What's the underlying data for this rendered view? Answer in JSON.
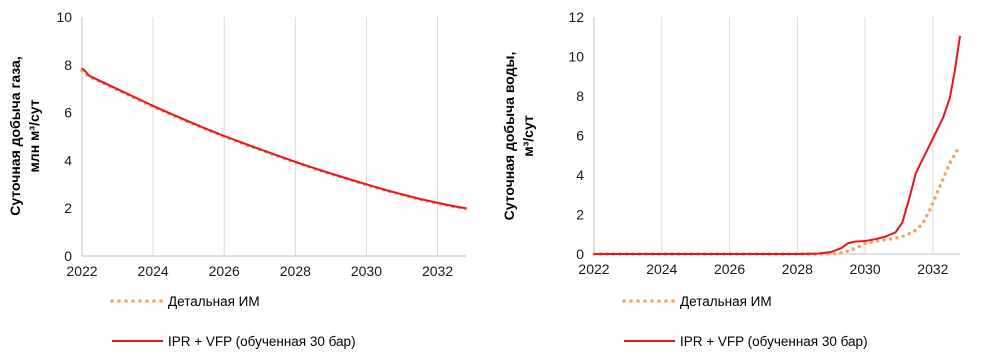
{
  "charts": [
    {
      "id": "left",
      "ylabel_line1": "Суточная добыча газа,",
      "ylabel_line2": "млн м³/сут"
    },
    {
      "id": "right",
      "ylabel_line1": "Суточная добыча воды,",
      "ylabel_line2": "м³/сут"
    }
  ],
  "colors": {
    "detailed": "#f4a460",
    "ipr": "#e8141e",
    "grid": "#d9d9d9"
  },
  "chart_data": [
    {
      "type": "line",
      "title": "",
      "xlabel": "",
      "ylabel": "Суточная добыча газа, млн м³/сут",
      "xlim": [
        2022,
        2032.8
      ],
      "ylim": [
        0,
        10
      ],
      "x_ticks": [
        2022,
        2024,
        2026,
        2028,
        2030,
        2032
      ],
      "y_ticks": [
        0,
        2,
        4,
        6,
        8,
        10
      ],
      "grid": "vertical",
      "legend": "bottom",
      "series": [
        {
          "name": "Детальная ИМ",
          "style": "dotted",
          "color": "#f4a460",
          "x": [
            2022.0,
            2022.2,
            2022.5,
            2023.0,
            2023.5,
            2024.0,
            2024.5,
            2025.0,
            2025.5,
            2026.0,
            2026.5,
            2027.0,
            2027.5,
            2028.0,
            2028.5,
            2029.0,
            2029.5,
            2030.0,
            2030.5,
            2031.0,
            2031.5,
            2032.0,
            2032.5,
            2032.8
          ],
          "y": [
            7.75,
            7.5,
            7.3,
            6.95,
            6.6,
            6.25,
            5.93,
            5.6,
            5.3,
            5.0,
            4.72,
            4.45,
            4.18,
            3.92,
            3.67,
            3.43,
            3.2,
            2.98,
            2.76,
            2.56,
            2.37,
            2.2,
            2.05,
            1.98
          ]
        },
        {
          "name": "IPR + VFP (обученная 30 бар)",
          "style": "solid",
          "color": "#e8141e",
          "x": [
            2022.0,
            2022.05,
            2022.2,
            2022.5,
            2023.0,
            2023.5,
            2024.0,
            2024.5,
            2025.0,
            2025.5,
            2026.0,
            2026.5,
            2027.0,
            2027.5,
            2028.0,
            2028.5,
            2029.0,
            2029.5,
            2030.0,
            2030.5,
            2031.0,
            2031.5,
            2032.0,
            2032.5,
            2032.8
          ],
          "y": [
            7.85,
            7.8,
            7.55,
            7.33,
            6.98,
            6.63,
            6.28,
            5.95,
            5.63,
            5.32,
            5.02,
            4.74,
            4.47,
            4.2,
            3.94,
            3.69,
            3.45,
            3.22,
            3.0,
            2.78,
            2.58,
            2.39,
            2.22,
            2.07,
            2.0
          ]
        }
      ]
    },
    {
      "type": "line",
      "title": "",
      "xlabel": "",
      "ylabel": "Суточная добыча воды, м³/сут",
      "xlim": [
        2022,
        2032.8
      ],
      "ylim": [
        0,
        12
      ],
      "x_ticks": [
        2022,
        2024,
        2026,
        2028,
        2030,
        2032
      ],
      "y_ticks": [
        0,
        2,
        4,
        6,
        8,
        10,
        12
      ],
      "grid": "vertical",
      "legend": "bottom",
      "series": [
        {
          "name": "Детальная ИМ",
          "style": "dotted",
          "color": "#f4a460",
          "x": [
            2022.0,
            2023.0,
            2024.0,
            2025.0,
            2026.0,
            2027.0,
            2028.0,
            2028.8,
            2029.2,
            2029.5,
            2029.8,
            2030.0,
            2030.3,
            2030.6,
            2030.9,
            2031.2,
            2031.5,
            2031.7,
            2031.9,
            2032.1,
            2032.3,
            2032.5,
            2032.7,
            2032.8
          ],
          "y": [
            0.0,
            0.0,
            0.0,
            0.0,
            0.0,
            0.0,
            0.0,
            0.0,
            0.02,
            0.15,
            0.35,
            0.55,
            0.65,
            0.72,
            0.8,
            0.95,
            1.2,
            1.55,
            2.2,
            3.0,
            3.8,
            4.6,
            5.2,
            5.5
          ]
        },
        {
          "name": "IPR + VFP (обученная 30 бар)",
          "style": "solid",
          "color": "#e8141e",
          "x": [
            2022.0,
            2023.0,
            2024.0,
            2025.0,
            2026.0,
            2027.0,
            2028.0,
            2028.6,
            2029.0,
            2029.3,
            2029.5,
            2029.7,
            2030.0,
            2030.3,
            2030.6,
            2030.9,
            2031.1,
            2031.3,
            2031.5,
            2031.7,
            2031.9,
            2032.1,
            2032.3,
            2032.5,
            2032.65,
            2032.8
          ],
          "y": [
            0.0,
            0.0,
            0.0,
            0.0,
            0.0,
            0.0,
            0.0,
            0.02,
            0.1,
            0.3,
            0.55,
            0.63,
            0.66,
            0.75,
            0.88,
            1.1,
            1.6,
            2.8,
            4.1,
            4.8,
            5.5,
            6.2,
            6.9,
            7.9,
            9.3,
            11.05
          ]
        }
      ]
    }
  ]
}
